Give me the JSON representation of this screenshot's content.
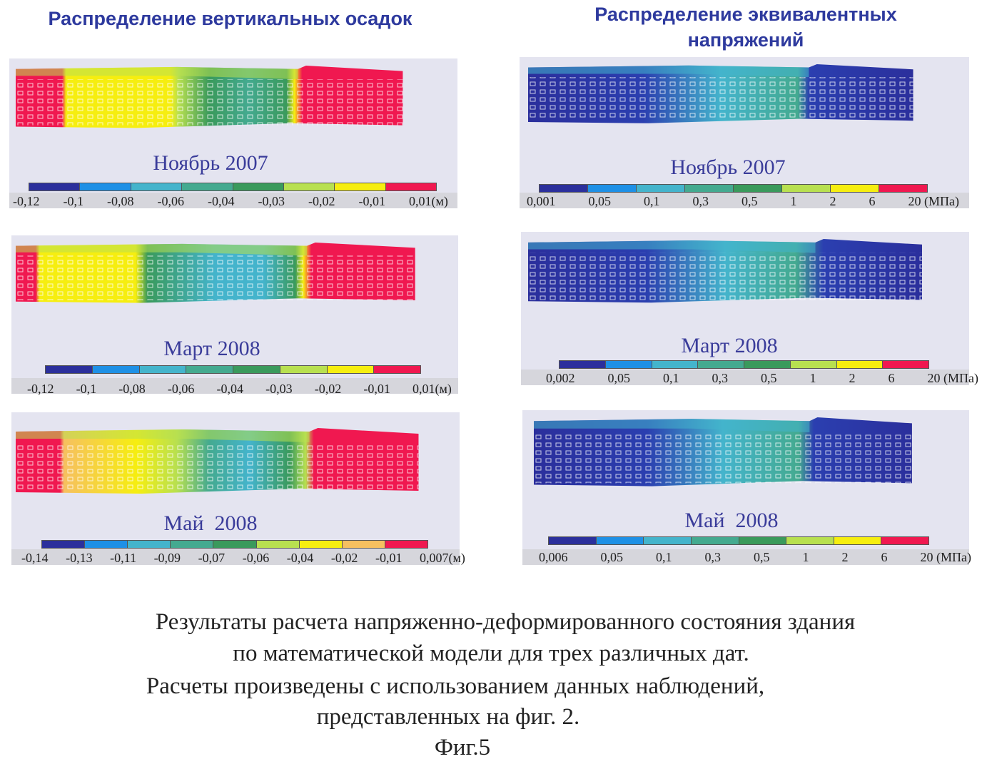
{
  "titles": {
    "left": "Распределение вертикальных осадок",
    "right_line1": "Распределение эквивалентных",
    "right_line2": "напряжений"
  },
  "left_colors": [
    "#2b2f9c",
    "#1e90e6",
    "#44b4cc",
    "#44aa90",
    "#3a9a5c",
    "#b8e050",
    "#f6ee10",
    "#f01850"
  ],
  "left_colors_may": [
    "#2b2f9c",
    "#1e90e6",
    "#44b4cc",
    "#44aa90",
    "#3a9a5c",
    "#b8e050",
    "#f6ee10",
    "#f6c060",
    "#f01850"
  ],
  "right_colors": [
    "#2b2f9c",
    "#1e90e6",
    "#44b4cc",
    "#44aa90",
    "#3a9a5c",
    "#b8e050",
    "#f6ee10",
    "#f01850"
  ],
  "panels": [
    {
      "caption": "Ноябрь 2007",
      "labels": [
        "-0,12",
        "-0,1",
        "-0,08",
        "-0,06",
        "-0,04",
        "-0,03",
        "-0,02",
        "-0,01",
        "0,01(м)"
      ]
    },
    {
      "caption": "Март 2008",
      "labels": [
        "-0,12",
        "-0,1",
        "-0,08",
        "-0,06",
        "-0,04",
        "-0,03",
        "-0,02",
        "-0,01",
        "0,01(м)"
      ]
    },
    {
      "caption": "Май  2008",
      "labels": [
        "-0,14",
        "-0,13",
        "-0,11",
        "-0,09",
        "-0,07",
        "-0,06",
        "-0,04",
        "-0,02",
        "-0,01",
        "0,007(м)"
      ]
    },
    {
      "caption": "Ноябрь 2007",
      "labels": [
        "0,001",
        "0,05",
        "0,1",
        "0,3",
        "0,5",
        "1",
        "2",
        "6",
        "20 (МПа)"
      ]
    },
    {
      "caption": "Март 2008",
      "labels": [
        "0,002",
        "0,05",
        "0,1",
        "0,3",
        "0,5",
        "1",
        "2",
        "6",
        "20 (МПа)"
      ]
    },
    {
      "caption": "Май  2008",
      "labels": [
        "0,006",
        "0,05",
        "0,1",
        "0,3",
        "0,5",
        "1",
        "2",
        "6",
        "20 (МПа)"
      ]
    }
  ],
  "caption": {
    "line1": "Результаты расчета напряженно-деформированного состояния здания",
    "line2": "по математической модели для трех различных дат.",
    "line3": "Расчеты произведены с использованием данных наблюдений,",
    "line4": "представленных на фиг. 2.",
    "fig": "Фиг.5"
  }
}
